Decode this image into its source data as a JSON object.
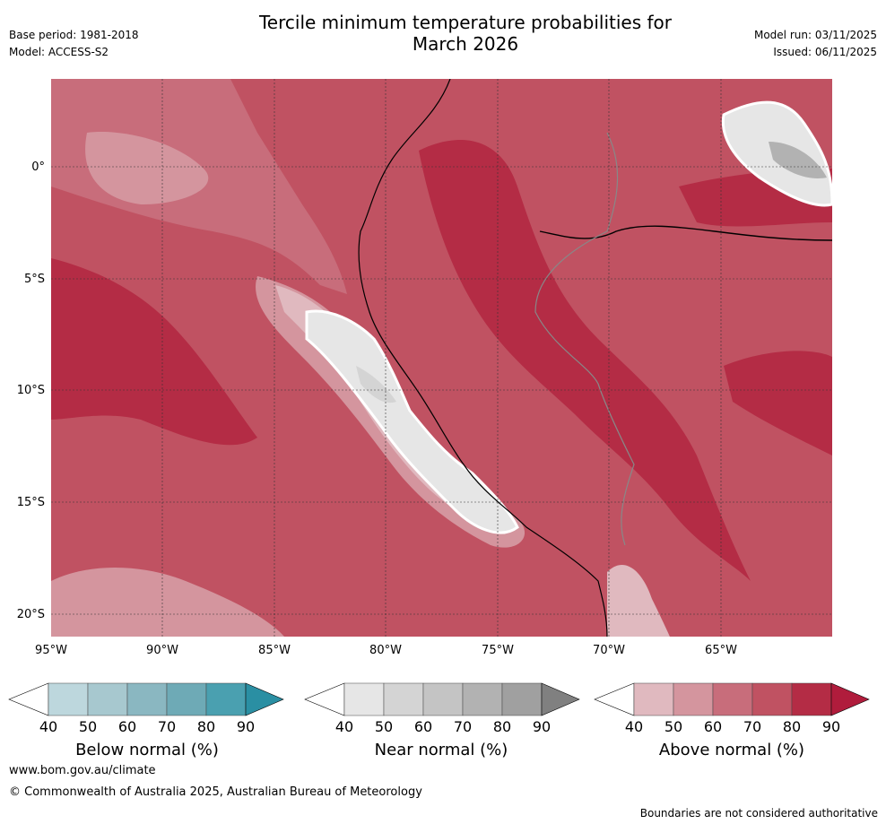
{
  "header": {
    "title_line1": "Tercile minimum temperature probabilities for",
    "title_line2": "March 2026",
    "base_period": "Base period: 1981-2018",
    "model": "Model: ACCESS-S2",
    "model_run": "Model run: 03/11/2025",
    "issued": "Issued: 06/11/2025"
  },
  "map": {
    "lat_labels": [
      "0°",
      "5°S",
      "10°S",
      "15°S",
      "20°S"
    ],
    "lon_labels": [
      "95°W",
      "90°W",
      "85°W",
      "80°W",
      "75°W",
      "70°W",
      "65°W"
    ]
  },
  "legends": [
    {
      "title": "Below normal (%)",
      "ticks": [
        "40",
        "50",
        "60",
        "70",
        "80",
        "90"
      ],
      "colors": [
        "#ffffff",
        "#bdd7dd",
        "#a7c8cf",
        "#8ab7c1",
        "#6eaab6",
        "#4aa0b0",
        "#2a8fa3"
      ]
    },
    {
      "title": "Near normal (%)",
      "ticks": [
        "40",
        "50",
        "60",
        "70",
        "80",
        "90"
      ],
      "colors": [
        "#ffffff",
        "#e6e6e6",
        "#d4d4d4",
        "#c4c4c4",
        "#b2b2b2",
        "#a0a0a0",
        "#808080"
      ]
    },
    {
      "title": "Above normal (%)",
      "ticks": [
        "40",
        "50",
        "60",
        "70",
        "80",
        "90"
      ],
      "colors": [
        "#ffffff",
        "#e0b9bf",
        "#d4959e",
        "#c86d7b",
        "#c05262",
        "#b42c45",
        "#b01c3c"
      ]
    }
  ],
  "footer": {
    "website": "www.bom.gov.au/climate",
    "copyright": "© Commonwealth of Australia 2025, Australian Bureau of Meteorology",
    "disclaimer": "Boundaries are not considered authoritative"
  }
}
